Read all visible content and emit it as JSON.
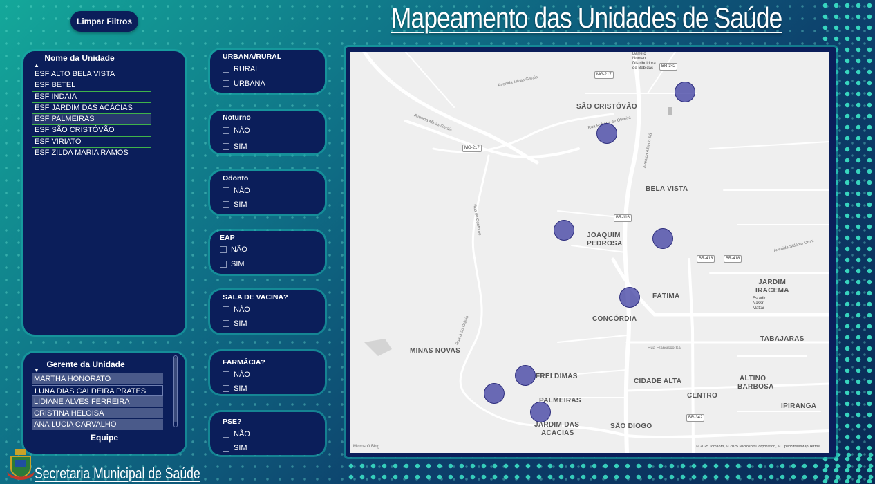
{
  "header": {
    "clear_filters_label": "Limpar Filtros",
    "title": "Mapeamento das Unidades de Saúde"
  },
  "unit_panel": {
    "title": "Nome da Unidade",
    "items": [
      "ESF ALTO BELA VISTA",
      "ESF BETEL",
      "ESF INDAIA",
      "ESF JARDIM DAS ACÁCIAS",
      "ESF PALMEIRAS",
      "ESF SÃO CRISTÓVÃO",
      "ESF VIRIATO",
      "ESF ZILDA MARIA RAMOS"
    ]
  },
  "manager_panel": {
    "title": "Gerente da Unidade",
    "items": [
      "MARTHA HONORATO",
      "LUNA DIAS CALDEIRA PRATES",
      "LIDIANE ALVES FERREIRA",
      "CRISTINA HELOISA",
      "ANA LUCIA CARVALHO"
    ],
    "footer_label": "Equipe"
  },
  "filters": [
    {
      "title": "URBANA/RURAL",
      "options": [
        "RURAL",
        "URBANA"
      ]
    },
    {
      "title": "Noturno",
      "options": [
        "NÃO",
        "SIM"
      ]
    },
    {
      "title": "Odonto",
      "options": [
        "NÃO",
        "SIM"
      ]
    },
    {
      "title": "EAP",
      "options": [
        "NÃO",
        "SIM"
      ]
    },
    {
      "title": "SALA DE VACINA?",
      "options": [
        "NÃO",
        "SIM"
      ]
    },
    {
      "title": "FARMÁCIA?",
      "options": [
        "NÃO",
        "SIM"
      ]
    },
    {
      "title": "PSE?",
      "options": [
        "NÃO",
        "SIM"
      ]
    }
  ],
  "map": {
    "neighborhoods": {
      "sao_cristovao": "SÃO CRISTÓVÃO",
      "bela_vista": "BELA VISTA",
      "joaquim": "JOAQUIM",
      "pedrosa": "PEDROSA",
      "fatima": "FÁTIMA",
      "concordia": "CONCÓRDIA",
      "jardim": "JARDIM",
      "iracema": "IRACEMA",
      "tabajaras": "TABAJARAS",
      "minas_novas": "MINAS NOVAS",
      "frei_dimas": "FREI DIMAS",
      "cidade_alta": "CIDADE ALTA",
      "altino": "ALTINO",
      "barbosa": "BARBOSA",
      "centro": "CENTRO",
      "ipiranga": "IPIRANGA",
      "palmeiras": "PALMEIRAS",
      "jardim_das": "JARDIM DAS",
      "acacias": "ACÁCIAS",
      "sao_diogo": "SÃO DIOGO"
    },
    "shields": {
      "br342_top": "BR-342",
      "mg217_top": "MG-217",
      "mg217_left": "MG-217",
      "br116": "BR-116",
      "br418_a": "BR-418",
      "br418_b": "BR-418",
      "br342_bottom": "BR-342"
    },
    "roads": {
      "av_minas_gerais_top": "Avenida Minas Gerais",
      "av_minas_gerais_left": "Avenida Minas Gerais",
      "av_sidonio_otoni": "Avenida Sidônio Otoni",
      "av_alfredo_sa": "Avenida Alfredo Sá",
      "rua_rubens_de_oliveira": "Rua Rubens de Oliveira",
      "rua_joao_otavio": "Rua João Otávio",
      "rua_francisco_sa": "Rua Francisco Sá",
      "rua_do_contorno": "Rua do Contorno"
    },
    "poi": {
      "barreto_line1": "Barreto",
      "barreto_line2": "Noman",
      "barreto_line3": "Distribuidora",
      "barreto_line4": "de Bebidas",
      "estadio_line1": "Estádio",
      "estadio_line2": "Nassri",
      "estadio_line3": "Mattar"
    },
    "bing_label": "Microsoft Bing",
    "attribution": "© 2025 TomTom, © 2025 Microsoft Corporation, © OpenStreetMap  Terms"
  },
  "footer": {
    "label": "Secretaria Municipal de Saúde"
  },
  "colors": {
    "panel_bg": "#0b1e5a",
    "marker": "#3c3ca0",
    "list_divider": "#3fb34a"
  }
}
